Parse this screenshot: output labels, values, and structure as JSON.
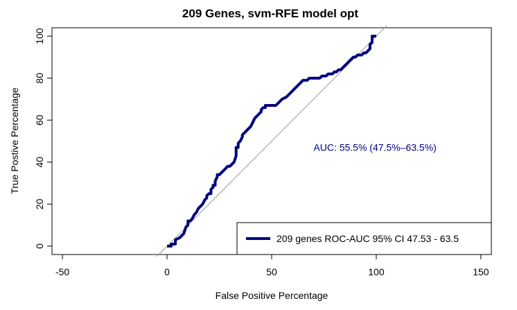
{
  "chart_data": {
    "type": "line",
    "title": "209 Genes, svm-RFE model opt",
    "xlabel": "False Positive Percentage",
    "ylabel": "True Postive Percentage",
    "xlim": [
      -55,
      155
    ],
    "ylim": [
      -4,
      104
    ],
    "xticks": [
      -50,
      0,
      50,
      100,
      150
    ],
    "yticks": [
      0,
      20,
      40,
      60,
      80,
      100
    ],
    "xtick_labels": [
      "-50",
      "0",
      "50",
      "100",
      "150"
    ],
    "ytick_labels": [
      "0",
      "20",
      "40",
      "60",
      "80",
      "100"
    ],
    "annotation": "AUC: 55.5% (47.5%–63.5%)",
    "annotation_at": [
      70,
      47
    ],
    "grid": false,
    "legend_position": "bottom-right",
    "colors": {
      "curve": "#000080",
      "annotation": "#000080",
      "diagonal": "#999999"
    },
    "diagonal": {
      "x": [
        -5,
        105
      ],
      "y": [
        -5,
        105
      ]
    },
    "series": [
      {
        "name": "209 genes ROC-AUC 95% CI  47.53 - 63.5",
        "x": [
          0,
          2,
          2,
          4,
          4,
          6,
          7,
          8,
          9,
          10,
          10,
          11,
          12,
          13,
          14,
          15,
          16,
          17,
          18,
          19,
          19,
          20,
          21,
          21,
          22,
          22,
          23,
          23,
          24,
          24,
          25,
          26,
          27,
          28,
          29,
          29,
          30,
          31,
          32,
          33,
          33,
          34,
          34,
          35,
          36,
          36,
          37,
          38,
          39,
          40,
          41,
          42,
          43,
          44,
          45,
          45,
          46,
          47,
          47,
          48,
          49,
          50,
          51,
          52,
          53,
          54,
          55,
          57,
          58,
          59,
          60,
          61,
          62,
          63,
          64,
          65,
          66,
          67,
          68,
          69,
          70,
          71,
          72,
          73,
          74,
          75,
          76,
          77,
          78,
          79,
          80,
          81,
          82,
          83,
          84,
          85,
          86,
          87,
          88,
          89,
          90,
          91,
          92,
          93,
          94,
          95,
          96,
          97,
          97,
          98,
          98,
          99,
          100
        ],
        "y": [
          0,
          0,
          1,
          1,
          3,
          4,
          5,
          6,
          9,
          10,
          12,
          12,
          13,
          15,
          16,
          18,
          19,
          20,
          22,
          23,
          24,
          25,
          25,
          27,
          28,
          29,
          29,
          31,
          33,
          34,
          34,
          35,
          36,
          37,
          38,
          38,
          38,
          39,
          40,
          43,
          47,
          47,
          49,
          50,
          52,
          53,
          54,
          55,
          56,
          57,
          59,
          61,
          62,
          63,
          64,
          65,
          66,
          66,
          67,
          67,
          67,
          67,
          67,
          67,
          68,
          69,
          70,
          71,
          72,
          73,
          74,
          75,
          76,
          77,
          78,
          79,
          79,
          79,
          80,
          80,
          80,
          80,
          80,
          80,
          81,
          81,
          81,
          82,
          82,
          82,
          83,
          83,
          84,
          84,
          85,
          86,
          87,
          88,
          89,
          90,
          90,
          91,
          91,
          91,
          92,
          92,
          93,
          94,
          96,
          97,
          100,
          100,
          100
        ]
      }
    ]
  }
}
